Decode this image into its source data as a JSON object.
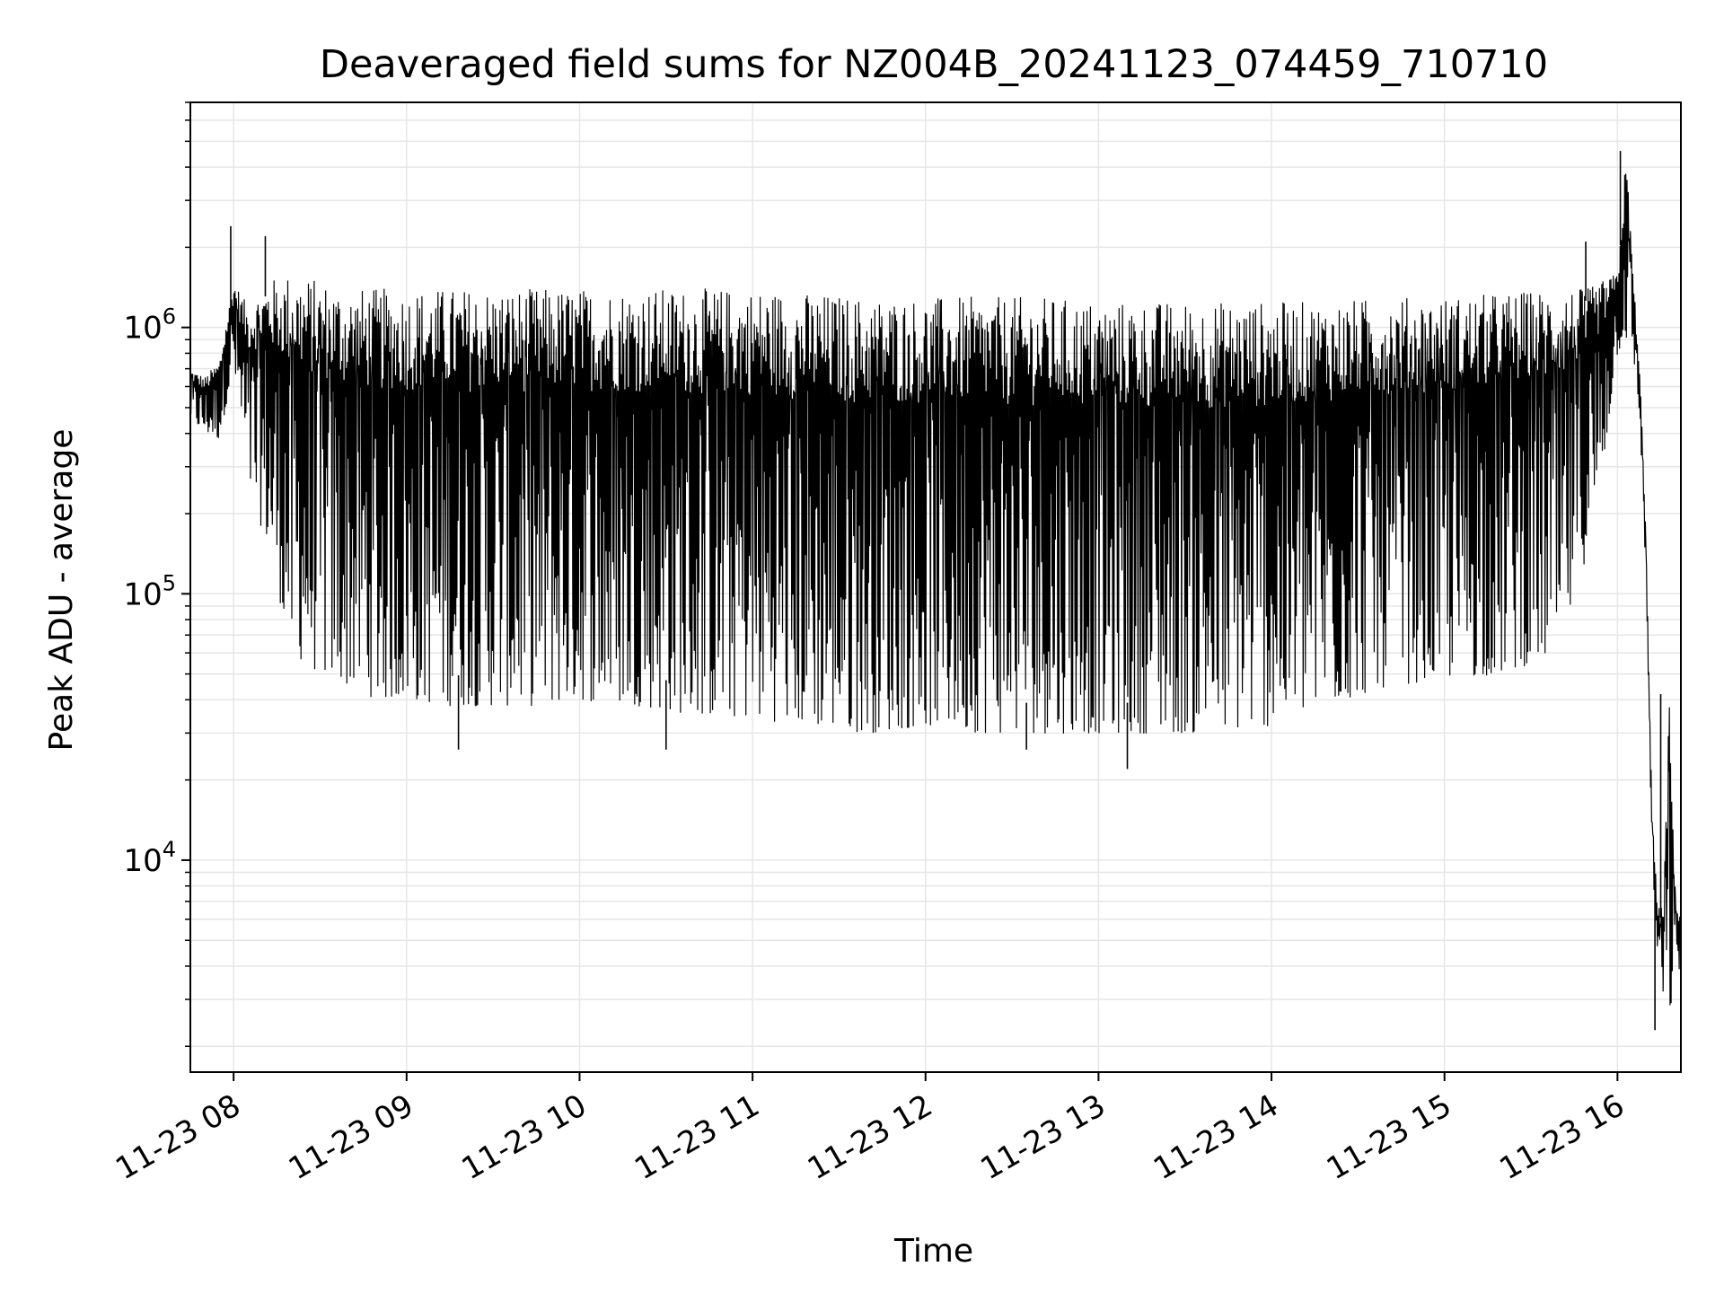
{
  "chart_data": {
    "type": "line",
    "title": "Deaveraged field sums for NZ004B_20241123_074459_710710",
    "xlabel": "Time",
    "ylabel": "Peak ADU - average",
    "y_scale": "log",
    "ylim": [
      1600,
      7000000
    ],
    "xlim": [
      "2024-11-23 07:45",
      "2024-11-23 16:22"
    ],
    "grid": true,
    "legend": "none",
    "colors": {
      "line": "#000000",
      "grid": "#e6e6e6",
      "axes": "#000000"
    },
    "x_ticks": [
      {
        "value": "2024-11-23 08:00",
        "label": "11-23 08"
      },
      {
        "value": "2024-11-23 09:00",
        "label": "11-23 09"
      },
      {
        "value": "2024-11-23 10:00",
        "label": "11-23 10"
      },
      {
        "value": "2024-11-23 11:00",
        "label": "11-23 11"
      },
      {
        "value": "2024-11-23 12:00",
        "label": "11-23 12"
      },
      {
        "value": "2024-11-23 13:00",
        "label": "11-23 13"
      },
      {
        "value": "2024-11-23 14:00",
        "label": "11-23 14"
      },
      {
        "value": "2024-11-23 15:00",
        "label": "11-23 15"
      },
      {
        "value": "2024-11-23 16:00",
        "label": "11-23 16"
      }
    ],
    "y_ticks": [
      {
        "value": 10000,
        "base": "10",
        "exp": "4"
      },
      {
        "value": 100000,
        "base": "10",
        "exp": "5"
      },
      {
        "value": 1000000,
        "base": "10",
        "exp": "6"
      }
    ],
    "series": [
      {
        "x": [
          "2024-11-23 07:45",
          "2024-11-23 07:50",
          "2024-11-23 07:55",
          "2024-11-23 08:00",
          "2024-11-23 08:05",
          "2024-11-23 08:12",
          "2024-11-23 08:20",
          "2024-11-23 08:30",
          "2024-11-23 08:40",
          "2024-11-23 08:50",
          "2024-11-23 09:00",
          "2024-11-23 09:15",
          "2024-11-23 09:30",
          "2024-11-23 09:45",
          "2024-11-23 10:00",
          "2024-11-23 10:20",
          "2024-11-23 10:40",
          "2024-11-23 11:00",
          "2024-11-23 11:20",
          "2024-11-23 11:40",
          "2024-11-23 12:00",
          "2024-11-23 12:20",
          "2024-11-23 12:40",
          "2024-11-23 13:00",
          "2024-11-23 13:20",
          "2024-11-23 13:40",
          "2024-11-23 14:00",
          "2024-11-23 14:20",
          "2024-11-23 14:40",
          "2024-11-23 15:00",
          "2024-11-23 15:20",
          "2024-11-23 15:40",
          "2024-11-23 15:50",
          "2024-11-23 15:55",
          "2024-11-23 16:00",
          "2024-11-23 16:03",
          "2024-11-23 16:06",
          "2024-11-23 16:08",
          "2024-11-23 16:10",
          "2024-11-23 16:12",
          "2024-11-23 16:14",
          "2024-11-23 16:16",
          "2024-11-23 16:18",
          "2024-11-23 16:20",
          "2024-11-23 16:22"
        ],
        "high": [
          700000,
          650000,
          750000,
          1500000,
          1200000,
          1500000,
          1600000,
          1500000,
          1400000,
          1400000,
          1400000,
          1400000,
          1400000,
          1400000,
          1400000,
          1400000,
          1400000,
          1400000,
          1350000,
          1300000,
          1300000,
          1300000,
          1300000,
          1250000,
          1250000,
          1250000,
          1250000,
          1250000,
          1300000,
          1300000,
          1350000,
          1400000,
          1400000,
          1500000,
          1600000,
          4500000,
          1300000,
          600000,
          150000,
          15000,
          6500,
          7000,
          42000,
          8000,
          6000
        ],
        "low": [
          450000,
          400000,
          380000,
          700000,
          250000,
          150000,
          60000,
          50000,
          45000,
          40000,
          40000,
          38000,
          38000,
          38000,
          40000,
          38000,
          35000,
          34000,
          32000,
          30000,
          32000,
          30000,
          30000,
          30000,
          30000,
          30000,
          32000,
          38000,
          45000,
          48000,
          50000,
          60000,
          150000,
          300000,
          800000,
          900000,
          700000,
          400000,
          100000,
          10000,
          4000,
          3000,
          2500,
          3500,
          4000
        ],
        "peaks": [
          {
            "x": "2024-11-23 07:59",
            "y": 2400000
          },
          {
            "x": "2024-11-23 08:11",
            "y": 2200000
          },
          {
            "x": "2024-11-23 15:49",
            "y": 2100000
          },
          {
            "x": "2024-11-23 16:01",
            "y": 4600000
          },
          {
            "x": "2024-11-23 16:15",
            "y": 42000
          }
        ],
        "dips": [
          {
            "x": "2024-11-23 09:18",
            "y": 26000
          },
          {
            "x": "2024-11-23 10:30",
            "y": 26000
          },
          {
            "x": "2024-11-23 12:35",
            "y": 26000
          },
          {
            "x": "2024-11-23 13:10",
            "y": 22000
          },
          {
            "x": "2024-11-23 16:13",
            "y": 2300
          }
        ]
      }
    ]
  }
}
